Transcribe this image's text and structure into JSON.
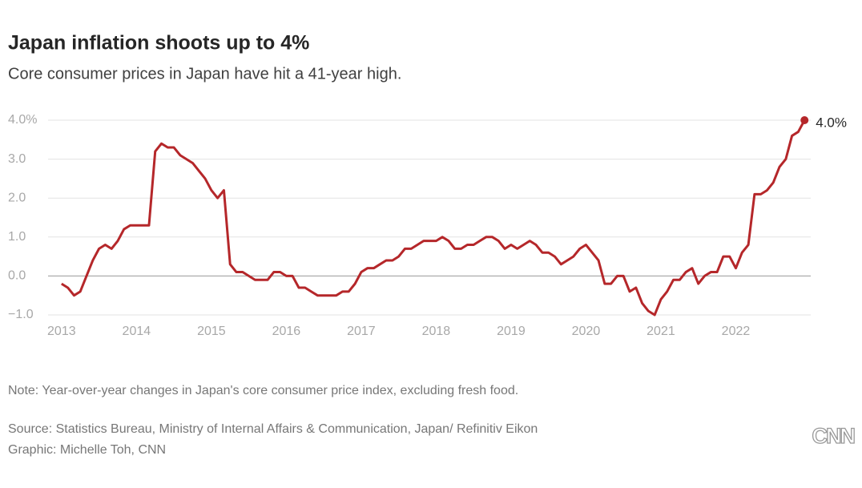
{
  "chart_data": {
    "type": "line",
    "title": "Japan inflation shoots up to 4%",
    "subtitle": "Core consumer prices in Japan have hit a 41-year high.",
    "note": "Note: Year-over-year changes in Japan's core consumer price index, excluding fresh food.",
    "source": "Source: Statistics Bureau, Ministry of Internal Affairs & Communication, Japan/ Refinitiv Eikon",
    "credit": "Graphic: Michelle Toh, CNN",
    "logo": "CNN",
    "x": [
      2013,
      2013.083,
      2013.167,
      2013.25,
      2013.333,
      2013.417,
      2013.5,
      2013.583,
      2013.667,
      2013.75,
      2013.833,
      2013.917,
      2014,
      2014.083,
      2014.167,
      2014.25,
      2014.333,
      2014.417,
      2014.5,
      2014.583,
      2014.667,
      2014.75,
      2014.833,
      2014.917,
      2015,
      2015.083,
      2015.167,
      2015.25,
      2015.333,
      2015.417,
      2015.5,
      2015.583,
      2015.667,
      2015.75,
      2015.833,
      2015.917,
      2016,
      2016.083,
      2016.167,
      2016.25,
      2016.333,
      2016.417,
      2016.5,
      2016.583,
      2016.667,
      2016.75,
      2016.833,
      2016.917,
      2017,
      2017.083,
      2017.167,
      2017.25,
      2017.333,
      2017.417,
      2017.5,
      2017.583,
      2017.667,
      2017.75,
      2017.833,
      2017.917,
      2018,
      2018.083,
      2018.167,
      2018.25,
      2018.333,
      2018.417,
      2018.5,
      2018.583,
      2018.667,
      2018.75,
      2018.833,
      2018.917,
      2019,
      2019.083,
      2019.167,
      2019.25,
      2019.333,
      2019.417,
      2019.5,
      2019.583,
      2019.667,
      2019.75,
      2019.833,
      2019.917,
      2020,
      2020.083,
      2020.167,
      2020.25,
      2020.333,
      2020.417,
      2020.5,
      2020.583,
      2020.667,
      2020.75,
      2020.833,
      2020.917,
      2021,
      2021.083,
      2021.167,
      2021.25,
      2021.333,
      2021.417,
      2021.5,
      2021.583,
      2021.667,
      2021.75,
      2021.833,
      2021.917,
      2022,
      2022.083,
      2022.167,
      2022.25,
      2022.333,
      2022.417,
      2022.5,
      2022.583,
      2022.667,
      2022.75,
      2022.833,
      2022.917
    ],
    "series": [
      {
        "color": "#b5272a",
        "values": [
          -0.2,
          -0.3,
          -0.5,
          -0.4,
          0.0,
          0.4,
          0.7,
          0.8,
          0.7,
          0.9,
          1.2,
          1.3,
          1.3,
          1.3,
          1.3,
          3.2,
          3.4,
          3.3,
          3.3,
          3.1,
          3.0,
          2.9,
          2.7,
          2.5,
          2.2,
          2.0,
          2.2,
          0.3,
          0.1,
          0.1,
          0.0,
          -0.1,
          -0.1,
          -0.1,
          0.1,
          0.1,
          0.0,
          0.0,
          -0.3,
          -0.3,
          -0.4,
          -0.5,
          -0.5,
          -0.5,
          -0.5,
          -0.4,
          -0.4,
          -0.2,
          0.1,
          0.2,
          0.2,
          0.3,
          0.4,
          0.4,
          0.5,
          0.7,
          0.7,
          0.8,
          0.9,
          0.9,
          0.9,
          1.0,
          0.9,
          0.7,
          0.7,
          0.8,
          0.8,
          0.9,
          1.0,
          1.0,
          0.9,
          0.7,
          0.8,
          0.7,
          0.8,
          0.9,
          0.8,
          0.6,
          0.6,
          0.5,
          0.3,
          0.4,
          0.5,
          0.7,
          0.8,
          0.6,
          0.4,
          -0.2,
          -0.2,
          0.0,
          0.0,
          -0.4,
          -0.3,
          -0.7,
          -0.9,
          -1.0,
          -0.6,
          -0.4,
          -0.1,
          -0.1,
          0.1,
          0.2,
          -0.2,
          0.0,
          0.1,
          0.1,
          0.5,
          0.5,
          0.2,
          0.6,
          0.8,
          2.1,
          2.1,
          2.2,
          2.4,
          2.8,
          3.0,
          3.6,
          3.7,
          4.0
        ],
        "value_labels": [
          null,
          null,
          null,
          null,
          null,
          null,
          null,
          null,
          null,
          null,
          null,
          null,
          null,
          null,
          null,
          null,
          null,
          null,
          null,
          null,
          null,
          null,
          null,
          null,
          null,
          null,
          null,
          null,
          null,
          null,
          null,
          null,
          null,
          null,
          null,
          null,
          null,
          null,
          null,
          null,
          null,
          null,
          null,
          null,
          null,
          null,
          null,
          null,
          null,
          null,
          null,
          null,
          null,
          null,
          null,
          null,
          null,
          null,
          null,
          null,
          null,
          null,
          null,
          null,
          null,
          null,
          null,
          null,
          null,
          null,
          null,
          null,
          null,
          null,
          null,
          null,
          null,
          null,
          null,
          null,
          null,
          null,
          null,
          null,
          null,
          null,
          null,
          null,
          null,
          null,
          null,
          null,
          null,
          null,
          null,
          null,
          null,
          null,
          null,
          null,
          null,
          null,
          null,
          null,
          null,
          null,
          null,
          null,
          null,
          null,
          null,
          null,
          null,
          null,
          null,
          null,
          null,
          null,
          null,
          "4.0%"
        ]
      }
    ],
    "xlim": [
      2012.82,
      2023.0
    ],
    "xticks": [
      2013,
      2014,
      2015,
      2016,
      2017,
      2018,
      2019,
      2020,
      2021,
      2022
    ],
    "ylim": [
      -1.0,
      4.0
    ],
    "yticks": [
      {
        "value": -1.0,
        "label": "−1.0"
      },
      {
        "value": 0.0,
        "label": "0.0"
      },
      {
        "value": 1.0,
        "label": "1.0"
      },
      {
        "value": 2.0,
        "label": "2.0"
      },
      {
        "value": 3.0,
        "label": "3.0"
      },
      {
        "value": 4.0,
        "label": "4.0%"
      }
    ],
    "grid": true
  }
}
